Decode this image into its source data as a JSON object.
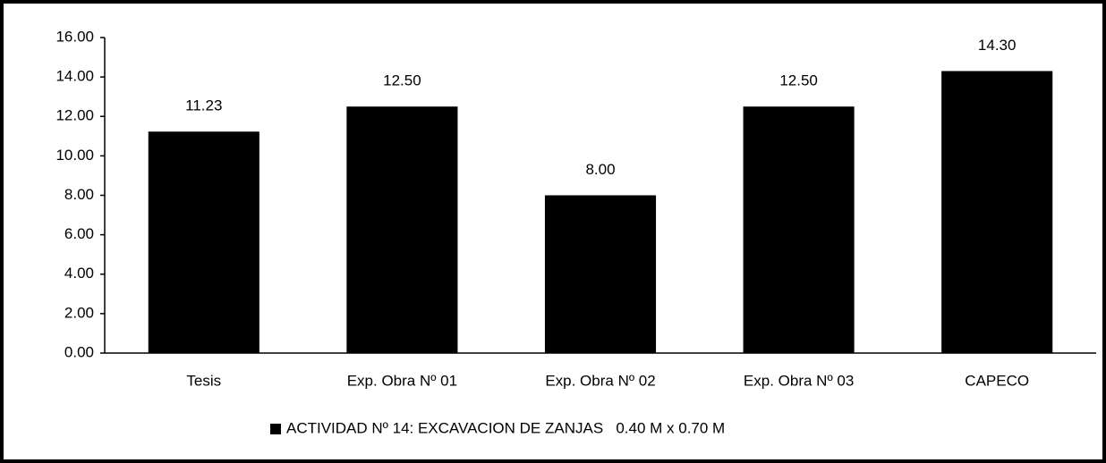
{
  "chart_data": {
    "type": "bar",
    "categories": [
      "Tesis",
      "Exp. Obra Nº 01",
      "Exp. Obra Nº 02",
      "Exp. Obra Nº 03",
      "CAPECO"
    ],
    "series": [
      {
        "name": "ACTIVIDAD Nº 14: EXCAVACION DE ZANJAS   0.40 M x 0.70 M",
        "color": "#000000",
        "values": [
          11.23,
          12.5,
          8,
          12.5,
          14.3
        ],
        "value_labels": [
          "11.23",
          "12.50",
          "8.00",
          "12.50",
          "14.30"
        ]
      }
    ],
    "ylim": [
      0,
      16
    ],
    "yticks": [
      {
        "value": 0,
        "label": "0.00"
      },
      {
        "value": 2,
        "label": "2.00"
      },
      {
        "value": 4,
        "label": "4.00"
      },
      {
        "value": 6,
        "label": "6.00"
      },
      {
        "value": 8,
        "label": "8.00"
      },
      {
        "value": 10,
        "label": "10.00"
      },
      {
        "value": 12,
        "label": "12.00"
      },
      {
        "value": 14,
        "label": "14.00"
      },
      {
        "value": 16,
        "label": "16.00"
      }
    ],
    "grid": false,
    "legend": "bottom"
  }
}
